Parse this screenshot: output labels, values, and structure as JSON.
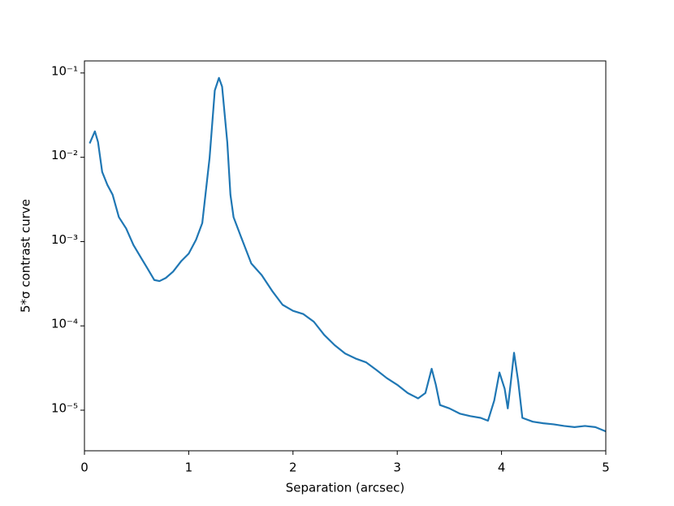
{
  "chart_data": {
    "type": "line",
    "xlabel": "Separation (arcsec)",
    "ylabel": "5*σ contrast curve",
    "color": "#1f77b4",
    "yscale": "log",
    "x": [
      0.05,
      0.1,
      0.13,
      0.17,
      0.22,
      0.27,
      0.33,
      0.4,
      0.47,
      0.55,
      0.6,
      0.67,
      0.72,
      0.78,
      0.85,
      0.93,
      1.0,
      1.07,
      1.13,
      1.2,
      1.25,
      1.29,
      1.32,
      1.37,
      1.4,
      1.43,
      1.5,
      1.6,
      1.7,
      1.8,
      1.9,
      2.0,
      2.1,
      2.2,
      2.3,
      2.4,
      2.5,
      2.6,
      2.7,
      2.8,
      2.9,
      3.0,
      3.1,
      3.2,
      3.27,
      3.33,
      3.37,
      3.41,
      3.5,
      3.6,
      3.7,
      3.8,
      3.87,
      3.93,
      3.98,
      4.03,
      4.06,
      4.09,
      4.12,
      4.16,
      4.2,
      4.3,
      4.4,
      4.5,
      4.6,
      4.7,
      4.8,
      4.9,
      5.0
    ],
    "values": [
      0.0146,
      0.0203,
      0.0152,
      0.0067,
      0.0047,
      0.0036,
      0.00195,
      0.00143,
      0.00091,
      0.00062,
      0.00049,
      0.00035,
      0.00034,
      0.00037,
      0.00044,
      0.00059,
      0.00072,
      0.00105,
      0.00166,
      0.0098,
      0.062,
      0.0875,
      0.069,
      0.015,
      0.0036,
      0.00195,
      0.00115,
      0.00055,
      0.0004,
      0.00026,
      0.000178,
      0.000151,
      0.000138,
      0.000112,
      7.8e-05,
      5.9e-05,
      4.7e-05,
      4.1e-05,
      3.7e-05,
      3e-05,
      2.4e-05,
      2e-05,
      1.6e-05,
      1.38e-05,
      1.6e-05,
      3.1e-05,
      2e-05,
      1.15e-05,
      1.05e-05,
      9.1e-06,
      8.5e-06,
      8.1e-06,
      7.5e-06,
      1.3e-05,
      2.8e-05,
      1.8e-05,
      1.05e-05,
      2.2e-05,
      4.8e-05,
      2.2e-05,
      8.1e-06,
      7.3e-06,
      7e-06,
      6.8e-06,
      6.5e-06,
      6.3e-06,
      6.5e-06,
      6.3e-06,
      5.6e-06
    ],
    "xlim": [
      0,
      5
    ],
    "xticks": [
      0,
      1,
      2,
      3,
      4,
      5
    ],
    "ylim": [
      3.3e-06,
      0.139
    ],
    "yticks": [
      {
        "value": 1e-05,
        "label": "10⁻⁵"
      },
      {
        "value": 0.0001,
        "label": "10⁻⁴"
      },
      {
        "value": 0.001,
        "label": "10⁻³"
      },
      {
        "value": 0.01,
        "label": "10⁻²"
      },
      {
        "value": 0.1,
        "label": "10⁻¹"
      }
    ]
  }
}
